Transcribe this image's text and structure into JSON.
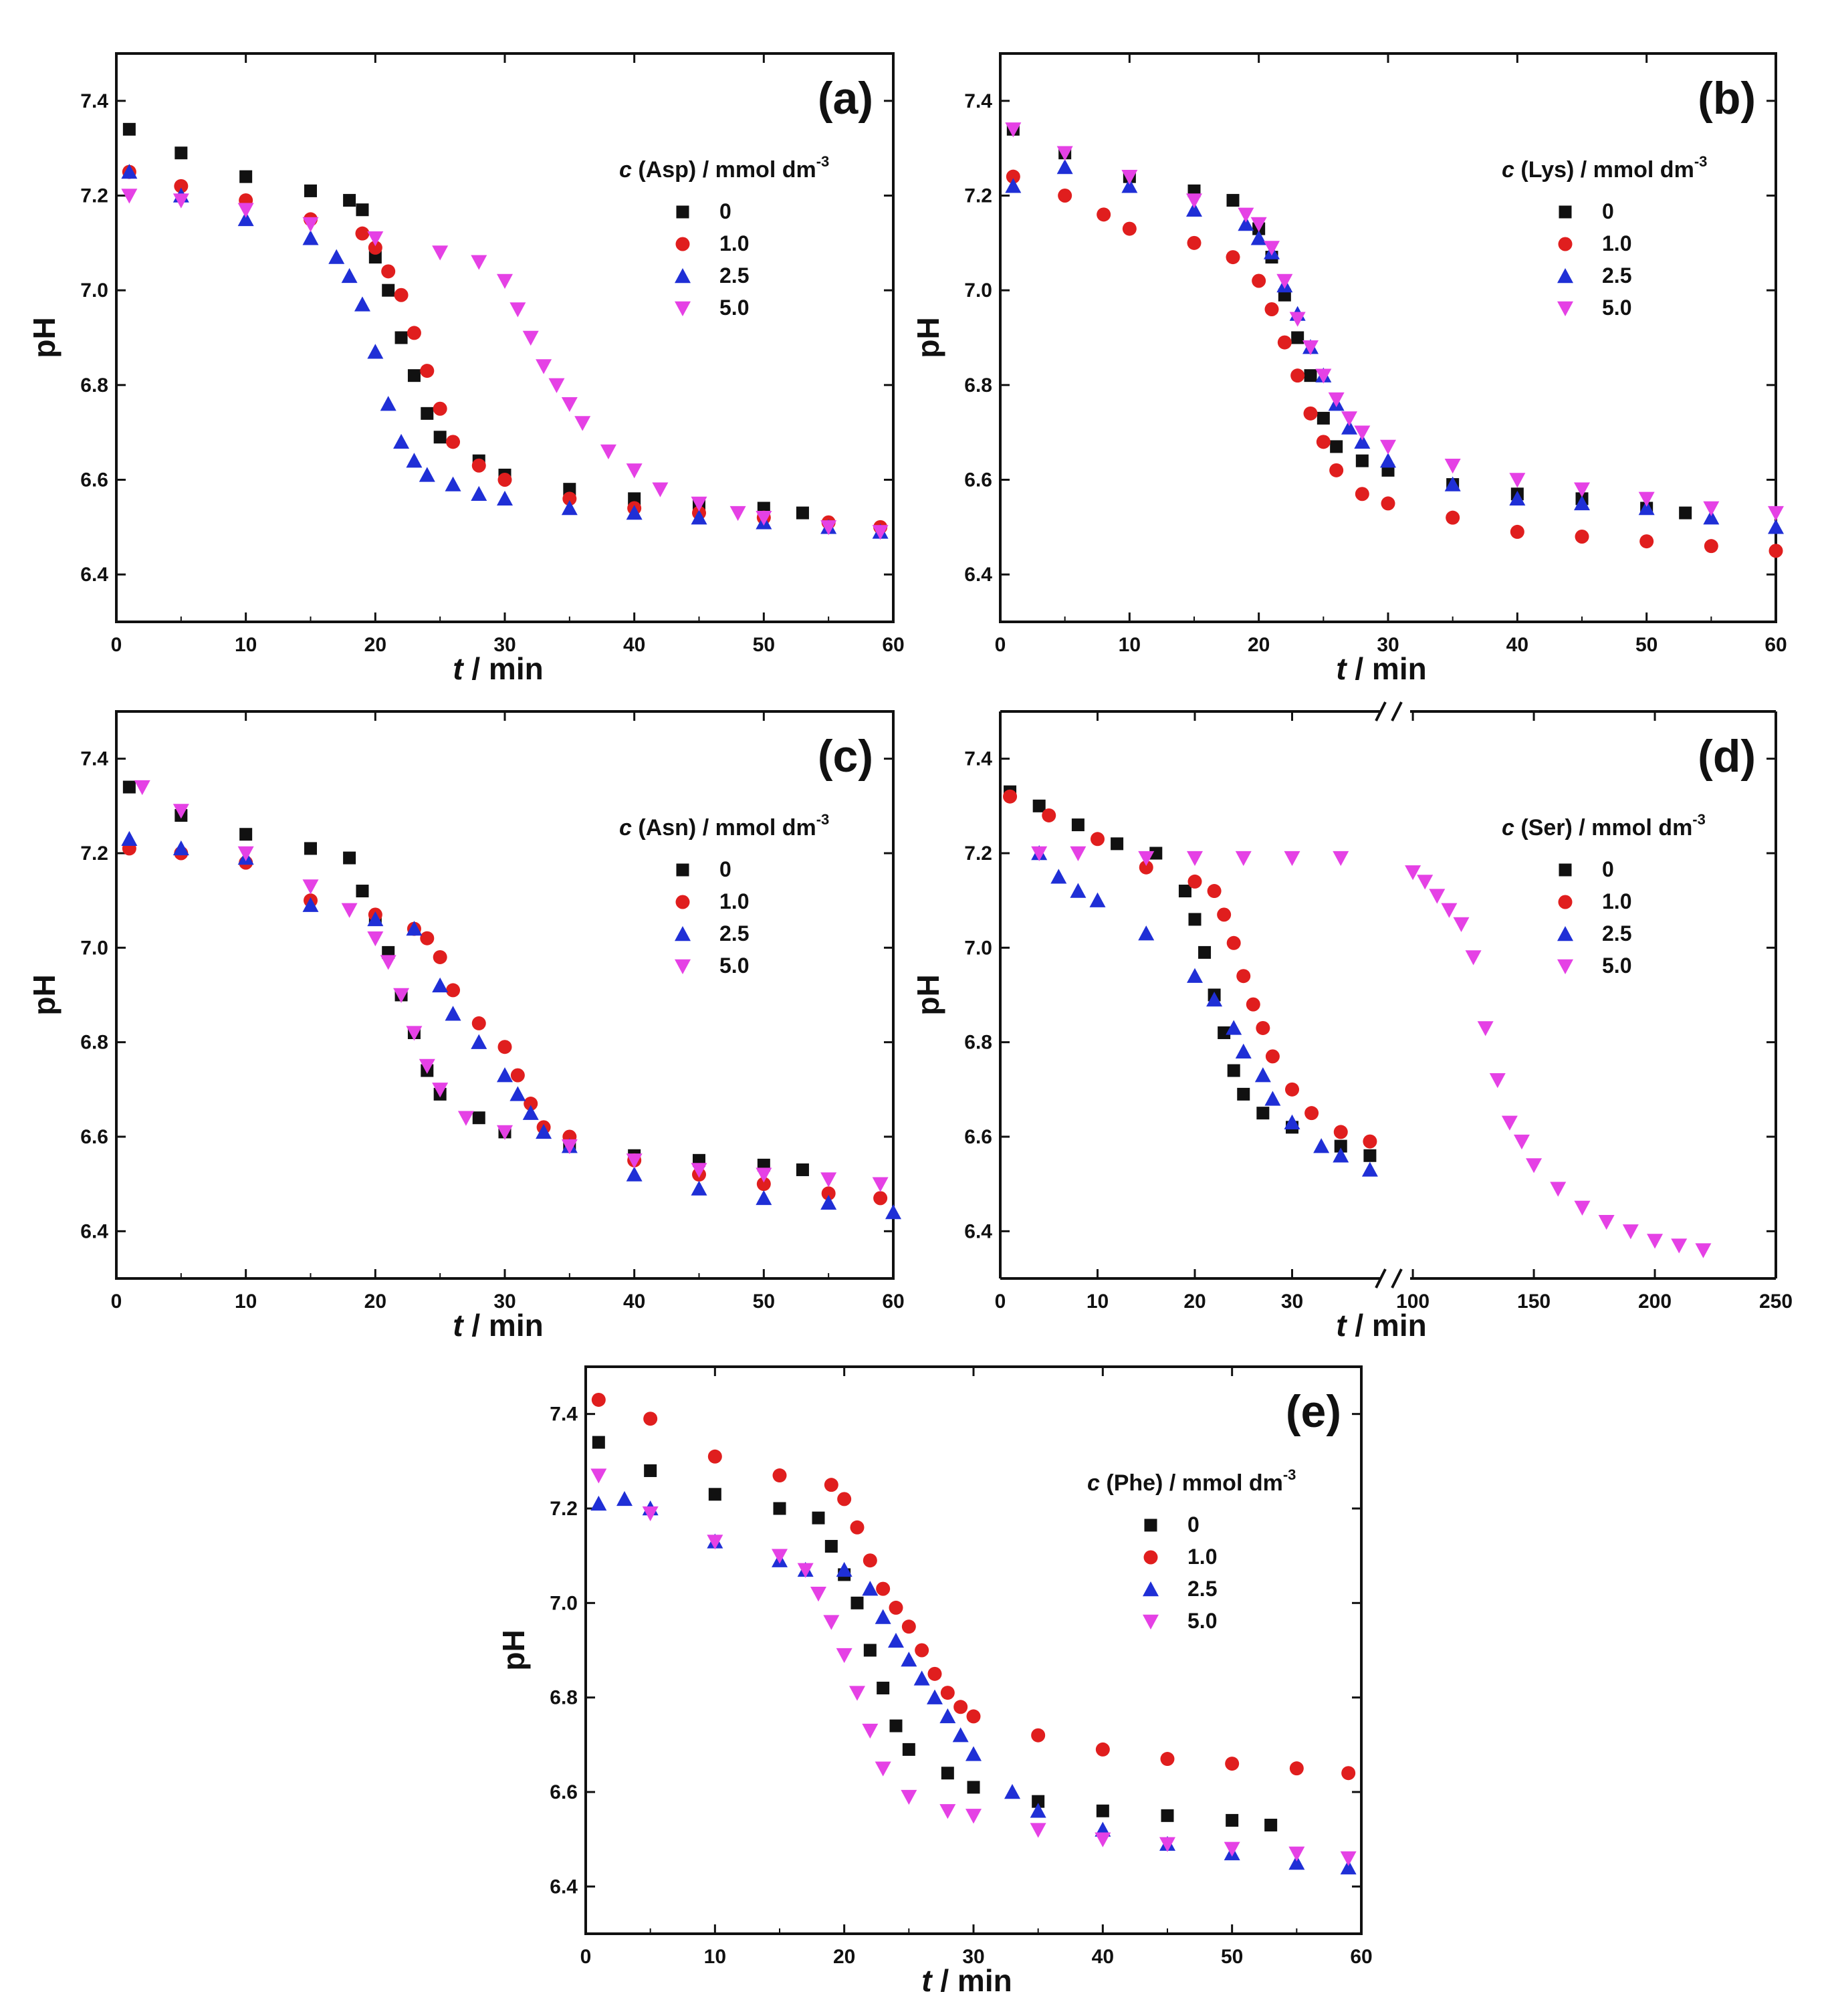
{
  "chart_data": [
    {
      "panel": "(a)",
      "type": "scatter",
      "xlabel_var": "t",
      "xlabel_unit": " / min",
      "ylabel": "pH",
      "xlim": [
        0,
        60
      ],
      "ylim": [
        6.3,
        7.5
      ],
      "xticks": [
        0,
        10,
        20,
        30,
        40,
        50,
        60
      ],
      "yticks": [
        6.4,
        6.6,
        6.8,
        7.0,
        7.2,
        7.4
      ],
      "legend_var": "c",
      "legend_label": " (Asp) / mmol dm",
      "legend_sup": "-3",
      "legend_position": "top-right",
      "series": [
        {
          "name": "0",
          "color": "#111111",
          "marker": "square",
          "x": [
            1,
            5,
            10,
            15,
            18,
            19,
            20,
            21,
            22,
            23,
            24,
            25,
            28,
            30,
            35,
            40,
            45,
            50,
            53
          ],
          "y": [
            7.34,
            7.29,
            7.24,
            7.21,
            7.19,
            7.17,
            7.07,
            7.0,
            6.9,
            6.82,
            6.74,
            6.69,
            6.64,
            6.61,
            6.58,
            6.56,
            6.55,
            6.54,
            6.53
          ]
        },
        {
          "name": "1.0",
          "color": "#e01e1e",
          "marker": "circle",
          "x": [
            1,
            5,
            10,
            15,
            19,
            20,
            21,
            22,
            23,
            24,
            25,
            26,
            28,
            30,
            35,
            40,
            45,
            50,
            55,
            59
          ],
          "y": [
            7.25,
            7.22,
            7.19,
            7.15,
            7.12,
            7.09,
            7.04,
            6.99,
            6.91,
            6.83,
            6.75,
            6.68,
            6.63,
            6.6,
            6.56,
            6.54,
            6.53,
            6.52,
            6.51,
            6.5
          ]
        },
        {
          "name": "2.5",
          "color": "#1f2fd6",
          "marker": "triangle-up",
          "x": [
            1,
            5,
            10,
            15,
            17,
            18,
            19,
            20,
            21,
            22,
            23,
            24,
            26,
            28,
            30,
            35,
            40,
            45,
            50,
            55,
            59
          ],
          "y": [
            7.25,
            7.2,
            7.15,
            7.11,
            7.07,
            7.03,
            6.97,
            6.87,
            6.76,
            6.68,
            6.64,
            6.61,
            6.59,
            6.57,
            6.56,
            6.54,
            6.53,
            6.52,
            6.51,
            6.5,
            6.49
          ]
        },
        {
          "name": "5.0",
          "color": "#e541e5",
          "marker": "triangle-down",
          "x": [
            1,
            5,
            10,
            15,
            20,
            25,
            28,
            30,
            31,
            32,
            33,
            34,
            35,
            36,
            38,
            40,
            42,
            45,
            48,
            50,
            55,
            59
          ],
          "y": [
            7.2,
            7.19,
            7.17,
            7.14,
            7.11,
            7.08,
            7.06,
            7.02,
            6.96,
            6.9,
            6.84,
            6.8,
            6.76,
            6.72,
            6.66,
            6.62,
            6.58,
            6.55,
            6.53,
            6.52,
            6.5,
            6.49
          ]
        }
      ]
    },
    {
      "panel": "(b)",
      "type": "scatter",
      "xlabel_var": "t",
      "xlabel_unit": " / min",
      "ylabel": "pH",
      "xlim": [
        0,
        60
      ],
      "ylim": [
        6.3,
        7.5
      ],
      "xticks": [
        0,
        10,
        20,
        30,
        40,
        50,
        60
      ],
      "yticks": [
        6.4,
        6.6,
        6.8,
        7.0,
        7.2,
        7.4
      ],
      "legend_var": "c",
      "legend_label": " (Lys) / mmol dm",
      "legend_sup": "-3",
      "legend_position": "top-right",
      "series": [
        {
          "name": "0",
          "color": "#111111",
          "marker": "square",
          "x": [
            1,
            5,
            10,
            15,
            18,
            20,
            21,
            22,
            23,
            24,
            25,
            26,
            28,
            30,
            35,
            40,
            45,
            50,
            53
          ],
          "y": [
            7.34,
            7.29,
            7.24,
            7.21,
            7.19,
            7.13,
            7.07,
            6.99,
            6.9,
            6.82,
            6.73,
            6.67,
            6.64,
            6.62,
            6.59,
            6.57,
            6.56,
            6.54,
            6.53
          ]
        },
        {
          "name": "1.0",
          "color": "#e01e1e",
          "marker": "circle",
          "x": [
            1,
            5,
            8,
            10,
            15,
            18,
            20,
            21,
            22,
            23,
            24,
            25,
            26,
            28,
            30,
            35,
            40,
            45,
            50,
            55,
            60
          ],
          "y": [
            7.24,
            7.2,
            7.16,
            7.13,
            7.1,
            7.07,
            7.02,
            6.96,
            6.89,
            6.82,
            6.74,
            6.68,
            6.62,
            6.57,
            6.55,
            6.52,
            6.49,
            6.48,
            6.47,
            6.46,
            6.45
          ]
        },
        {
          "name": "2.5",
          "color": "#1f2fd6",
          "marker": "triangle-up",
          "x": [
            1,
            5,
            10,
            15,
            19,
            20,
            21,
            22,
            23,
            24,
            25,
            26,
            27,
            28,
            30,
            35,
            40,
            45,
            50,
            55,
            60
          ],
          "y": [
            7.22,
            7.26,
            7.22,
            7.17,
            7.14,
            7.11,
            7.08,
            7.01,
            6.95,
            6.88,
            6.82,
            6.76,
            6.71,
            6.68,
            6.64,
            6.59,
            6.56,
            6.55,
            6.54,
            6.52,
            6.5
          ]
        },
        {
          "name": "5.0",
          "color": "#e541e5",
          "marker": "triangle-down",
          "x": [
            1,
            5,
            10,
            15,
            19,
            20,
            21,
            22,
            23,
            24,
            25,
            26,
            27,
            28,
            30,
            35,
            40,
            45,
            50,
            55,
            60
          ],
          "y": [
            7.34,
            7.29,
            7.24,
            7.19,
            7.16,
            7.14,
            7.09,
            7.02,
            6.94,
            6.88,
            6.82,
            6.77,
            6.73,
            6.7,
            6.67,
            6.63,
            6.6,
            6.58,
            6.56,
            6.54,
            6.53
          ]
        }
      ]
    },
    {
      "panel": "(c)",
      "type": "scatter",
      "xlabel_var": "t",
      "xlabel_unit": " / min",
      "ylabel": "pH",
      "xlim": [
        0,
        60
      ],
      "ylim": [
        6.3,
        7.5
      ],
      "xticks": [
        0,
        10,
        20,
        30,
        40,
        50,
        60
      ],
      "yticks": [
        6.4,
        6.6,
        6.8,
        7.0,
        7.2,
        7.4
      ],
      "legend_var": "c",
      "legend_label": " (Asn) / mmol dm",
      "legend_sup": "-3",
      "legend_position": "top-right",
      "series": [
        {
          "name": "0",
          "color": "#111111",
          "marker": "square",
          "x": [
            1,
            5,
            10,
            15,
            18,
            19,
            20,
            21,
            22,
            23,
            24,
            25,
            28,
            30,
            35,
            40,
            45,
            50,
            53
          ],
          "y": [
            7.34,
            7.28,
            7.24,
            7.21,
            7.19,
            7.12,
            7.06,
            6.99,
            6.9,
            6.82,
            6.74,
            6.69,
            6.64,
            6.61,
            6.58,
            6.56,
            6.55,
            6.54,
            6.53
          ]
        },
        {
          "name": "1.0",
          "color": "#e01e1e",
          "marker": "circle",
          "x": [
            1,
            5,
            10,
            15,
            20,
            23,
            24,
            25,
            26,
            28,
            30,
            31,
            32,
            33,
            35,
            40,
            45,
            50,
            55,
            59
          ],
          "y": [
            7.21,
            7.2,
            7.18,
            7.1,
            7.07,
            7.04,
            7.02,
            6.98,
            6.91,
            6.84,
            6.79,
            6.73,
            6.67,
            6.62,
            6.6,
            6.55,
            6.52,
            6.5,
            6.48,
            6.47
          ]
        },
        {
          "name": "2.5",
          "color": "#1f2fd6",
          "marker": "triangle-up",
          "x": [
            1,
            5,
            10,
            15,
            20,
            23,
            25,
            26,
            28,
            30,
            31,
            32,
            33,
            35,
            40,
            45,
            50,
            55,
            60
          ],
          "y": [
            7.23,
            7.21,
            7.19,
            7.09,
            7.06,
            7.04,
            6.92,
            6.86,
            6.8,
            6.73,
            6.69,
            6.65,
            6.61,
            6.58,
            6.52,
            6.49,
            6.47,
            6.46,
            6.44
          ]
        },
        {
          "name": "5.0",
          "color": "#e541e5",
          "marker": "triangle-down",
          "x": [
            2,
            5,
            10,
            15,
            18,
            20,
            21,
            22,
            23,
            24,
            25,
            27,
            30,
            35,
            40,
            45,
            50,
            55,
            59
          ],
          "y": [
            7.34,
            7.29,
            7.2,
            7.13,
            7.08,
            7.02,
            6.97,
            6.9,
            6.82,
            6.75,
            6.7,
            6.64,
            6.61,
            6.58,
            6.55,
            6.53,
            6.52,
            6.51,
            6.5
          ]
        }
      ]
    },
    {
      "panel": "(d)",
      "type": "scatter",
      "xlabel_var": "t",
      "xlabel_unit": " / min",
      "ylabel": "pH",
      "x_break": true,
      "x_segment_1": [
        0,
        40
      ],
      "x_segment_2": [
        95,
        250
      ],
      "ylim": [
        6.3,
        7.5
      ],
      "xticks": [
        0,
        10,
        20,
        30,
        100,
        150,
        200,
        250
      ],
      "yticks": [
        6.4,
        6.6,
        6.8,
        7.0,
        7.2,
        7.4
      ],
      "legend_var": "c",
      "legend_label": " (Ser) / mmol dm",
      "legend_sup": "-3",
      "legend_position": "top-right",
      "series": [
        {
          "name": "0",
          "color": "#111111",
          "marker": "square",
          "x": [
            1,
            4,
            8,
            12,
            16,
            19,
            20,
            21,
            22,
            23,
            24,
            25,
            27,
            30,
            35,
            38
          ],
          "y": [
            7.33,
            7.3,
            7.26,
            7.22,
            7.2,
            7.12,
            7.06,
            6.99,
            6.9,
            6.82,
            6.74,
            6.69,
            6.65,
            6.62,
            6.58,
            6.56
          ]
        },
        {
          "name": "1.0",
          "color": "#e01e1e",
          "marker": "circle",
          "x": [
            1,
            5,
            10,
            15,
            20,
            22,
            23,
            24,
            25,
            26,
            27,
            28,
            30,
            32,
            35,
            38
          ],
          "y": [
            7.32,
            7.28,
            7.23,
            7.17,
            7.14,
            7.12,
            7.07,
            7.01,
            6.94,
            6.88,
            6.83,
            6.77,
            6.7,
            6.65,
            6.61,
            6.59
          ]
        },
        {
          "name": "2.5",
          "color": "#1f2fd6",
          "marker": "triangle-up",
          "x": [
            4,
            6,
            8,
            10,
            15,
            20,
            22,
            24,
            25,
            27,
            28,
            30,
            33,
            35,
            38
          ],
          "y": [
            7.2,
            7.15,
            7.12,
            7.1,
            7.03,
            6.94,
            6.89,
            6.83,
            6.78,
            6.73,
            6.68,
            6.63,
            6.58,
            6.56,
            6.53
          ]
        },
        {
          "name": "5.0",
          "color": "#e541e5",
          "marker": "triangle-down",
          "x": [
            4,
            8,
            15,
            20,
            25,
            30,
            35,
            100,
            105,
            110,
            115,
            120,
            125,
            130,
            135,
            140,
            145,
            150,
            160,
            170,
            180,
            190,
            200,
            210,
            220
          ],
          "y": [
            7.2,
            7.2,
            7.19,
            7.19,
            7.19,
            7.19,
            7.19,
            7.16,
            7.14,
            7.11,
            7.08,
            7.05,
            6.98,
            6.83,
            6.72,
            6.63,
            6.59,
            6.54,
            6.49,
            6.45,
            6.42,
            6.4,
            6.38,
            6.37,
            6.36
          ]
        }
      ]
    },
    {
      "panel": "(e)",
      "type": "scatter",
      "xlabel_var": "t",
      "xlabel_unit": " / min",
      "ylabel": "pH",
      "xlim": [
        0,
        60
      ],
      "ylim": [
        6.3,
        7.5
      ],
      "xticks": [
        0,
        10,
        20,
        30,
        40,
        50,
        60
      ],
      "yticks": [
        6.4,
        6.6,
        6.8,
        7.0,
        7.2,
        7.4
      ],
      "legend_var": "c",
      "legend_label": " (Phe) / mmol dm",
      "legend_sup": "-3",
      "legend_position": "top-right",
      "series": [
        {
          "name": "0",
          "color": "#111111",
          "marker": "square",
          "x": [
            1,
            5,
            10,
            15,
            18,
            19,
            20,
            21,
            22,
            23,
            24,
            25,
            28,
            30,
            35,
            40,
            45,
            50,
            53
          ],
          "y": [
            7.34,
            7.28,
            7.23,
            7.2,
            7.18,
            7.12,
            7.06,
            7.0,
            6.9,
            6.82,
            6.74,
            6.69,
            6.64,
            6.61,
            6.58,
            6.56,
            6.55,
            6.54,
            6.53
          ]
        },
        {
          "name": "1.0",
          "color": "#e01e1e",
          "marker": "circle",
          "x": [
            1,
            5,
            10,
            15,
            19,
            20,
            21,
            22,
            23,
            24,
            25,
            26,
            27,
            28,
            29,
            30,
            35,
            40,
            45,
            50,
            55,
            59
          ],
          "y": [
            7.43,
            7.39,
            7.31,
            7.27,
            7.25,
            7.22,
            7.16,
            7.09,
            7.03,
            6.99,
            6.95,
            6.9,
            6.85,
            6.81,
            6.78,
            6.76,
            6.72,
            6.69,
            6.67,
            6.66,
            6.65,
            6.64
          ]
        },
        {
          "name": "2.5",
          "color": "#1f2fd6",
          "marker": "triangle-up",
          "x": [
            1,
            3,
            5,
            10,
            15,
            17,
            20,
            22,
            23,
            24,
            25,
            26,
            27,
            28,
            29,
            30,
            33,
            35,
            40,
            45,
            50,
            55,
            59
          ],
          "y": [
            7.21,
            7.22,
            7.2,
            7.13,
            7.09,
            7.07,
            7.07,
            7.03,
            6.97,
            6.92,
            6.88,
            6.84,
            6.8,
            6.76,
            6.72,
            6.68,
            6.6,
            6.56,
            6.52,
            6.49,
            6.47,
            6.45,
            6.44
          ]
        },
        {
          "name": "5.0",
          "color": "#e541e5",
          "marker": "triangle-down",
          "x": [
            1,
            5,
            10,
            15,
            17,
            18,
            19,
            20,
            21,
            22,
            23,
            25,
            28,
            30,
            35,
            40,
            45,
            50,
            55,
            59
          ],
          "y": [
            7.27,
            7.19,
            7.13,
            7.1,
            7.07,
            7.02,
            6.96,
            6.89,
            6.81,
            6.73,
            6.65,
            6.59,
            6.56,
            6.55,
            6.52,
            6.5,
            6.49,
            6.48,
            6.47,
            6.46
          ]
        }
      ]
    }
  ]
}
